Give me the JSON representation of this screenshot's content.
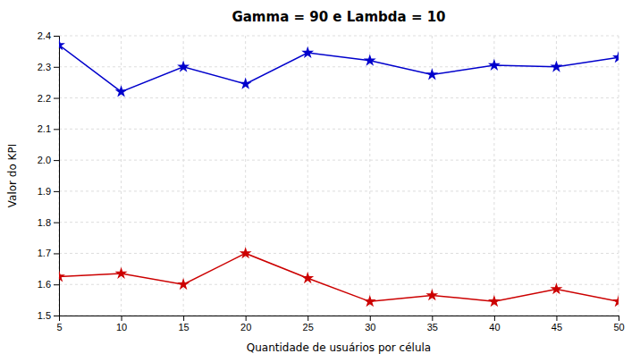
{
  "chart_data": {
    "type": "line",
    "title": "Gamma = 90 e Lambda = 10",
    "xlabel": "Quantidade de usuários por célula",
    "ylabel": "Valor do KPI",
    "x": [
      5,
      10,
      15,
      20,
      25,
      30,
      35,
      40,
      45,
      50
    ],
    "series": [
      {
        "color": "#0000CC",
        "values": [
          2.37,
          2.22,
          2.3,
          2.245,
          2.345,
          2.32,
          2.275,
          2.305,
          2.3,
          2.33
        ]
      },
      {
        "color": "#CC0000",
        "values": [
          1.625,
          1.635,
          1.6,
          1.7,
          1.62,
          1.545,
          1.565,
          1.545,
          1.585,
          1.545
        ]
      }
    ],
    "xlim": [
      5,
      50
    ],
    "ylim": [
      1.5,
      2.4
    ],
    "xticks": [
      5,
      10,
      15,
      20,
      25,
      30,
      35,
      40,
      45,
      50
    ],
    "yticks": [
      1.5,
      1.6,
      1.7,
      1.8,
      1.9,
      {
        "value": 2.0,
        "label": "2.0"
      },
      2.1,
      2.2,
      2.3,
      2.4
    ],
    "grid": true,
    "marker": "star",
    "line_style": "solid"
  }
}
